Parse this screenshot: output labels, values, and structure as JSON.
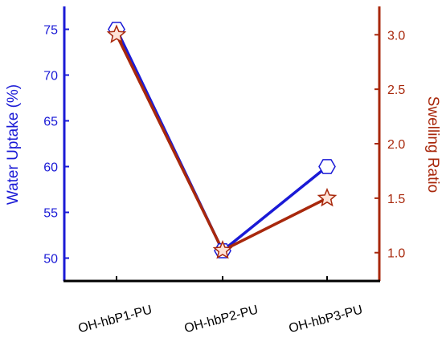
{
  "chart_data": {
    "type": "line",
    "categories": [
      "OH-hbP1-PU",
      "OH-hbP2-PU",
      "OH-hbP3-PU"
    ],
    "y_label": "Water Uptake (%)",
    "y2_label": "Swelling Ratio",
    "ylim": [
      47.5,
      77.5
    ],
    "yticks": [
      50,
      55,
      60,
      65,
      70,
      75
    ],
    "y2lim": [
      0.74,
      3.26
    ],
    "y2ticks": [
      {
        "value": 1,
        "label": "1.0"
      },
      {
        "value": 1.5,
        "label": "1.5"
      },
      {
        "value": 2,
        "label": "2.0"
      },
      {
        "value": 2.5,
        "label": "2.5"
      },
      {
        "value": 3,
        "label": "3.0"
      }
    ],
    "series": [
      {
        "name": "Water Uptake (%)",
        "color": "#1a1ad6",
        "axis": "y",
        "marker": "hexagon",
        "values": [
          75,
          50.8,
          60
        ]
      },
      {
        "name": "Swelling Ratio",
        "color": "#a8280c",
        "axis": "y2",
        "marker": "star",
        "values": [
          3.0,
          1.02,
          1.5
        ]
      }
    ]
  }
}
